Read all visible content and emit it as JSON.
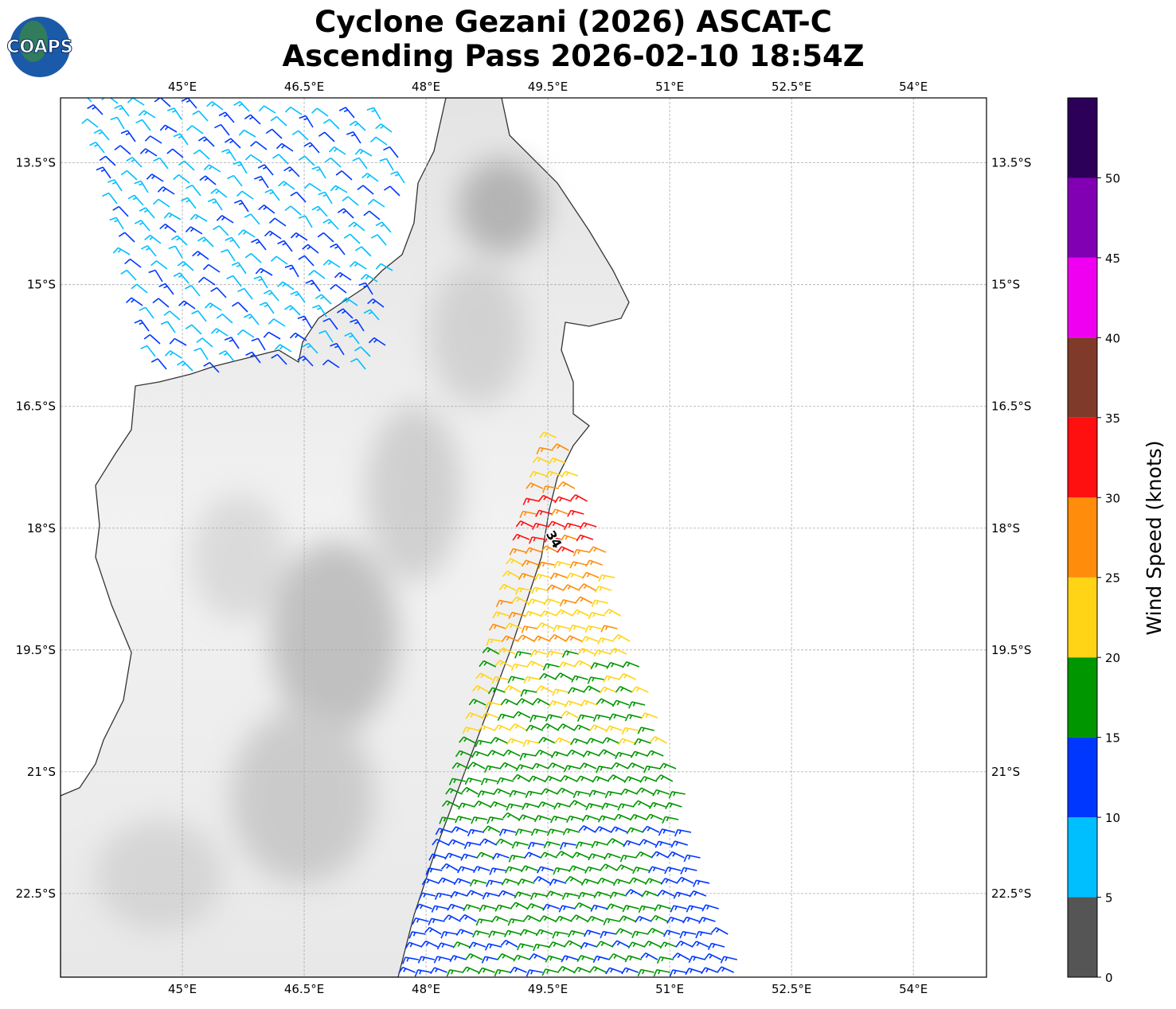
{
  "map": {
    "title": [
      "Cyclone Gezani (2026) ASCAT-C",
      "Ascending Pass 2026-02-10 18:54Z"
    ],
    "logo": "COAPS",
    "xlim": [
      43.5,
      54.9
    ],
    "ylim": [
      -23.53,
      -12.7
    ],
    "xticks": [
      {
        "value": 45,
        "label": "45°E"
      },
      {
        "value": 46.5,
        "label": "46.5°E"
      },
      {
        "value": 48,
        "label": "48°E"
      },
      {
        "value": 49.5,
        "label": "49.5°E"
      },
      {
        "value": 51,
        "label": "51°E"
      },
      {
        "value": 52.5,
        "label": "52.5°E"
      },
      {
        "value": 54,
        "label": "54°E"
      }
    ],
    "yticks": [
      {
        "value": -13.5,
        "label": "13.5°S"
      },
      {
        "value": -15,
        "label": "15°S"
      },
      {
        "value": -16.5,
        "label": "16.5°S"
      },
      {
        "value": -18,
        "label": "18°S"
      },
      {
        "value": -19.5,
        "label": "19.5°S"
      },
      {
        "value": -21,
        "label": "21°S"
      },
      {
        "value": -22.5,
        "label": "22.5°S"
      }
    ],
    "grid": true,
    "storm_label": "34",
    "colorbar": {
      "label": "Wind Speed (knots)",
      "lim": [
        0,
        55
      ],
      "ticks": [
        0,
        5,
        10,
        15,
        20,
        25,
        30,
        35,
        40,
        45,
        50
      ],
      "colors": [
        "#555555",
        "#00bfff",
        "#0037ff",
        "#009600",
        "#ffd416",
        "#ff8c0a",
        "#ff1010",
        "#7f3a29",
        "#f000f0",
        "#8200b4",
        "#2c0059"
      ]
    }
  }
}
